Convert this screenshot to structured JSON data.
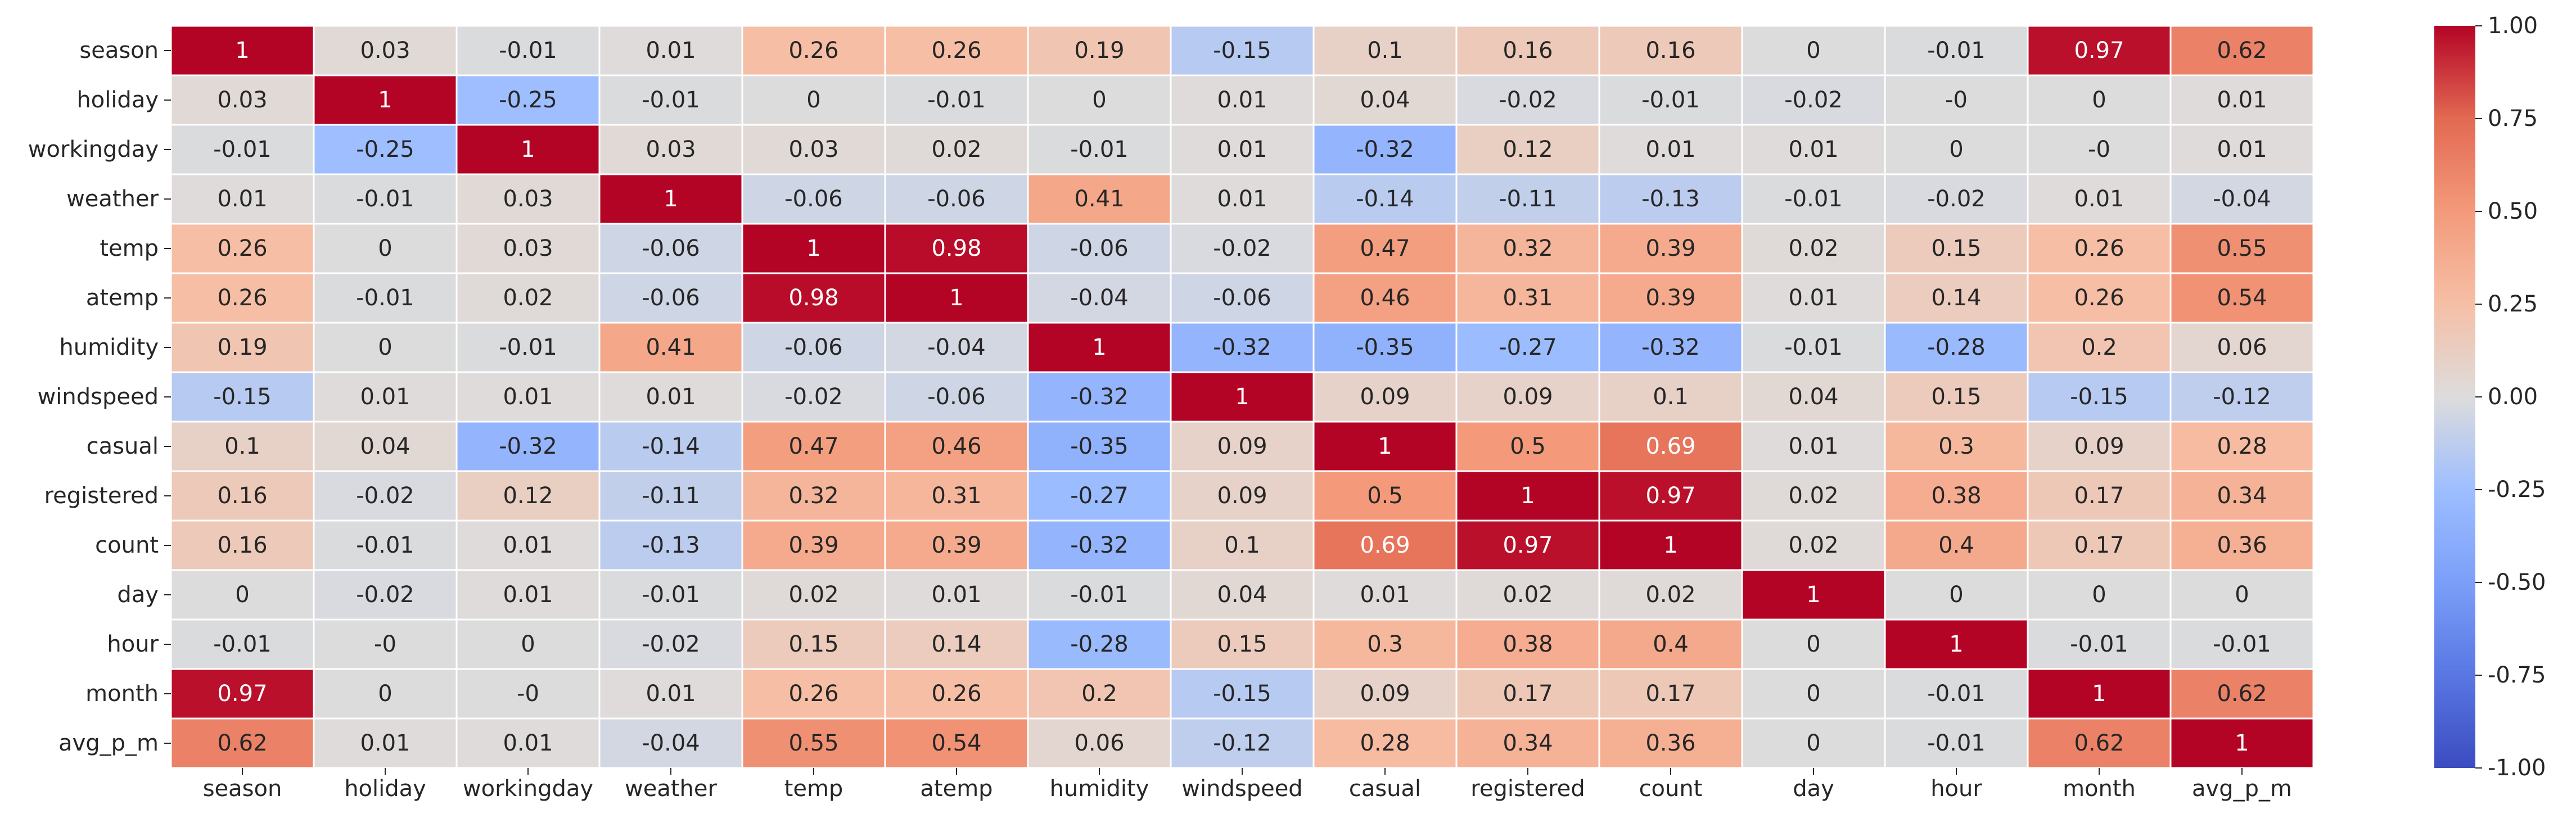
{
  "chart_data": {
    "type": "heatmap",
    "variables": [
      "season",
      "holiday",
      "workingday",
      "weather",
      "temp",
      "atemp",
      "humidity",
      "windspeed",
      "casual",
      "registered",
      "count",
      "day",
      "hour",
      "month",
      "avg_p_m"
    ],
    "values": [
      [
        "1",
        "0.03",
        "-0.01",
        "0.01",
        "0.26",
        "0.26",
        "0.19",
        "-0.15",
        "0.1",
        "0.16",
        "0.16",
        "0",
        "-0.01",
        "0.97",
        "0.62"
      ],
      [
        "0.03",
        "1",
        "-0.25",
        "-0.01",
        "0",
        "-0.01",
        "0",
        "0.01",
        "0.04",
        "-0.02",
        "-0.01",
        "-0.02",
        "-0",
        "0",
        "0.01"
      ],
      [
        "-0.01",
        "-0.25",
        "1",
        "0.03",
        "0.03",
        "0.02",
        "-0.01",
        "0.01",
        "-0.32",
        "0.12",
        "0.01",
        "0.01",
        "0",
        "-0",
        "0.01"
      ],
      [
        "0.01",
        "-0.01",
        "0.03",
        "1",
        "-0.06",
        "-0.06",
        "0.41",
        "0.01",
        "-0.14",
        "-0.11",
        "-0.13",
        "-0.01",
        "-0.02",
        "0.01",
        "-0.04"
      ],
      [
        "0.26",
        "0",
        "0.03",
        "-0.06",
        "1",
        "0.98",
        "-0.06",
        "-0.02",
        "0.47",
        "0.32",
        "0.39",
        "0.02",
        "0.15",
        "0.26",
        "0.55"
      ],
      [
        "0.26",
        "-0.01",
        "0.02",
        "-0.06",
        "0.98",
        "1",
        "-0.04",
        "-0.06",
        "0.46",
        "0.31",
        "0.39",
        "0.01",
        "0.14",
        "0.26",
        "0.54"
      ],
      [
        "0.19",
        "0",
        "-0.01",
        "0.41",
        "-0.06",
        "-0.04",
        "1",
        "-0.32",
        "-0.35",
        "-0.27",
        "-0.32",
        "-0.01",
        "-0.28",
        "0.2",
        "0.06"
      ],
      [
        "-0.15",
        "0.01",
        "0.01",
        "0.01",
        "-0.02",
        "-0.06",
        "-0.32",
        "1",
        "0.09",
        "0.09",
        "0.1",
        "0.04",
        "0.15",
        "-0.15",
        "-0.12"
      ],
      [
        "0.1",
        "0.04",
        "-0.32",
        "-0.14",
        "0.47",
        "0.46",
        "-0.35",
        "0.09",
        "1",
        "0.5",
        "0.69",
        "0.01",
        "0.3",
        "0.09",
        "0.28"
      ],
      [
        "0.16",
        "-0.02",
        "0.12",
        "-0.11",
        "0.32",
        "0.31",
        "-0.27",
        "0.09",
        "0.5",
        "1",
        "0.97",
        "0.02",
        "0.38",
        "0.17",
        "0.34"
      ],
      [
        "0.16",
        "-0.01",
        "0.01",
        "-0.13",
        "0.39",
        "0.39",
        "-0.32",
        "0.1",
        "0.69",
        "0.97",
        "1",
        "0.02",
        "0.4",
        "0.17",
        "0.36"
      ],
      [
        "0",
        "-0.02",
        "0.01",
        "-0.01",
        "0.02",
        "0.01",
        "-0.01",
        "0.04",
        "0.01",
        "0.02",
        "0.02",
        "1",
        "0",
        "0",
        "0"
      ],
      [
        "-0.01",
        "-0",
        "0",
        "-0.02",
        "0.15",
        "0.14",
        "-0.28",
        "0.15",
        "0.3",
        "0.38",
        "0.4",
        "0",
        "1",
        "-0.01",
        "-0.01"
      ],
      [
        "0.97",
        "0",
        "-0",
        "0.01",
        "0.26",
        "0.26",
        "0.2",
        "-0.15",
        "0.09",
        "0.17",
        "0.17",
        "0",
        "-0.01",
        "1",
        "0.62"
      ],
      [
        "0.62",
        "0.01",
        "0.01",
        "-0.04",
        "0.55",
        "0.54",
        "0.06",
        "-0.12",
        "0.28",
        "0.34",
        "0.36",
        "0",
        "-0.01",
        "0.62",
        "1"
      ]
    ],
    "colorbar": {
      "range": [
        -1.0,
        1.0
      ],
      "ticks": [
        "1.00",
        "0.75",
        "0.50",
        "0.25",
        "0.00",
        "-0.25",
        "-0.50",
        "-0.75",
        "-1.00"
      ],
      "colormap": "coolwarm"
    },
    "colors": {
      "stops": [
        [
          0.0,
          "#3b4cc0"
        ],
        [
          0.125,
          "#5977e3"
        ],
        [
          0.25,
          "#7b9ff9"
        ],
        [
          0.375,
          "#9ebeff"
        ],
        [
          0.5,
          "#dddcdc"
        ],
        [
          0.625,
          "#f6bfa6"
        ],
        [
          0.75,
          "#f49a7b"
        ],
        [
          0.875,
          "#e26952"
        ],
        [
          1.0,
          "#b40426"
        ]
      ],
      "cell_border": "#ffffff",
      "text_dark": "#262626",
      "text_light": "#ffffff"
    },
    "grid": false,
    "legend": "right colorbar"
  }
}
